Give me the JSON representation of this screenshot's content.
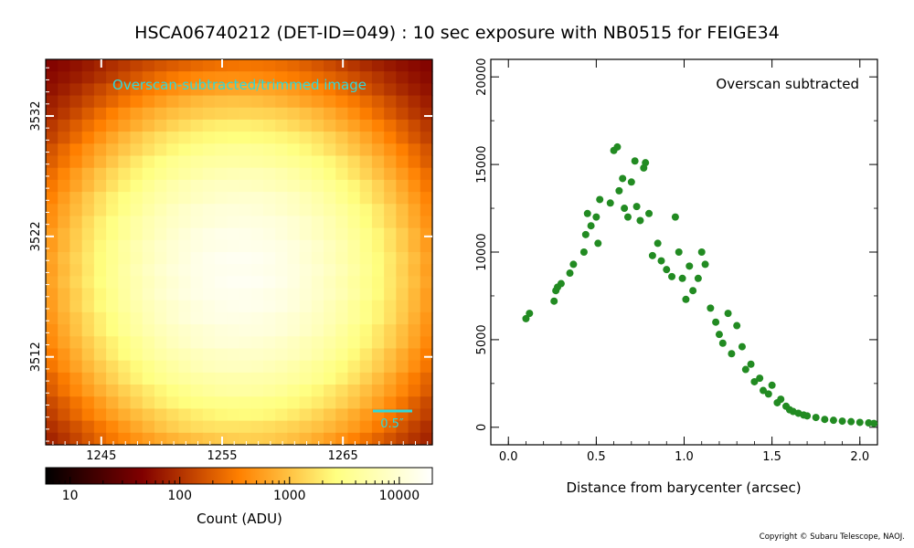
{
  "header": {
    "title": "HSCA06740212 (DET-ID=049) :  10 sec exposure with NB0515 for FEIGE34"
  },
  "image_panel": {
    "label": "Overscan-subtracted/trimmed image",
    "scale_bar_label": "0.5″",
    "x_ticks": [
      "1245",
      "1255",
      "1265"
    ],
    "y_ticks": [
      "3532",
      "3522",
      "3512"
    ],
    "x_tick_values": [
      1245,
      1255,
      1265
    ],
    "y_tick_values": [
      3532,
      3522,
      3512
    ],
    "x_range": [
      1240.4,
      1272.4
    ],
    "y_range": [
      3504.7,
      3536.7
    ],
    "peak_count": 16000
  },
  "colorbar": {
    "label": "Count (ADU)",
    "tick_labels": [
      "10",
      "100",
      "1000",
      "10000"
    ],
    "tick_values": [
      10,
      100,
      1000,
      10000
    ],
    "range": [
      6,
      20000
    ],
    "scale": "log",
    "colormap": "afmhot"
  },
  "chart_data": {
    "type": "scatter",
    "panel_label": "Overscan subtracted",
    "xlabel": "Distance from barycenter (arcsec)",
    "ylabel": "",
    "xlim": [
      -0.1,
      2.1
    ],
    "ylim": [
      -1000,
      21000
    ],
    "x_ticks": [
      "0.0",
      "0.5",
      "1.0",
      "1.5",
      "2.0"
    ],
    "x_tick_values": [
      0,
      0.5,
      1.0,
      1.5,
      2.0
    ],
    "y_ticks": [
      "0",
      "5000",
      "10000",
      "15000",
      "20000"
    ],
    "y_tick_values": [
      0,
      5000,
      10000,
      15000,
      20000
    ],
    "marker_color": "#228b22",
    "x": [
      0.1,
      0.12,
      0.26,
      0.27,
      0.28,
      0.3,
      0.35,
      0.37,
      0.43,
      0.44,
      0.45,
      0.47,
      0.5,
      0.51,
      0.52,
      0.58,
      0.6,
      0.62,
      0.63,
      0.65,
      0.66,
      0.68,
      0.7,
      0.72,
      0.73,
      0.75,
      0.77,
      0.78,
      0.8,
      0.82,
      0.85,
      0.87,
      0.9,
      0.93,
      0.95,
      0.97,
      0.99,
      1.01,
      1.03,
      1.05,
      1.08,
      1.1,
      1.12,
      1.15,
      1.18,
      1.2,
      1.22,
      1.25,
      1.27,
      1.3,
      1.33,
      1.35,
      1.38,
      1.4,
      1.43,
      1.45,
      1.48,
      1.5,
      1.53,
      1.55,
      1.58,
      1.6,
      1.62,
      1.65,
      1.68,
      1.7,
      1.75,
      1.8,
      1.85,
      1.9,
      1.95,
      2.0,
      2.05,
      2.08
    ],
    "y": [
      6200,
      6500,
      7200,
      7800,
      8000,
      8200,
      8800,
      9300,
      10000,
      11000,
      12200,
      11500,
      12000,
      10500,
      13000,
      12800,
      15800,
      16000,
      13500,
      14200,
      12500,
      12000,
      14000,
      15200,
      12600,
      11800,
      14800,
      15100,
      12200,
      9800,
      10500,
      9500,
      9000,
      8600,
      12000,
      10000,
      8500,
      7300,
      9200,
      7800,
      8500,
      10000,
      9300,
      6800,
      6000,
      5300,
      4800,
      6500,
      4200,
      5800,
      4600,
      3300,
      3600,
      2600,
      2800,
      2100,
      1900,
      2400,
      1400,
      1600,
      1200,
      1000,
      900,
      800,
      700,
      650,
      560,
      450,
      400,
      350,
      320,
      280,
      250,
      220
    ]
  },
  "footer": {
    "copyright": "Copyright © Subaru Telescope, NAOJ."
  }
}
